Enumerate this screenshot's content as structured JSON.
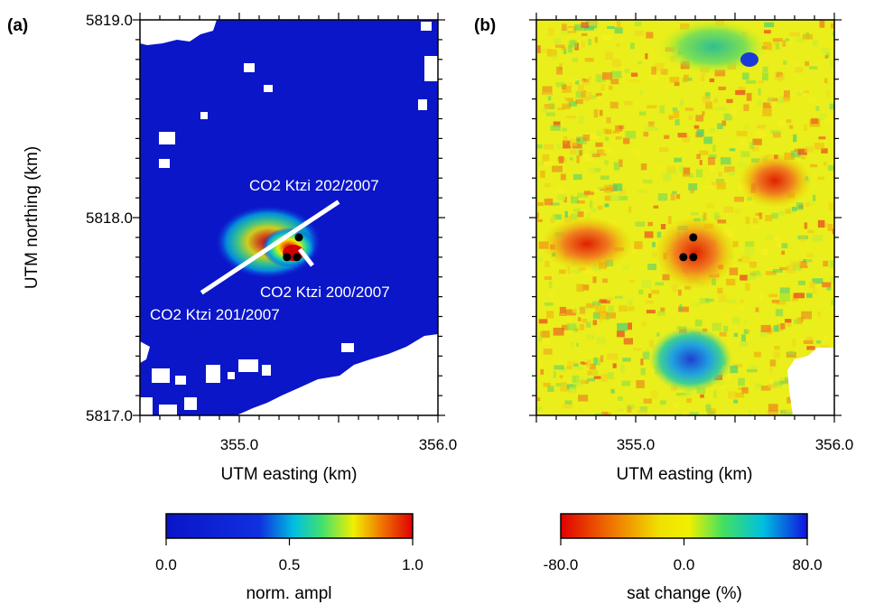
{
  "figure": {
    "panel_a": "(a)",
    "panel_b": "(b)"
  },
  "chart_data": [
    {
      "type": "heatmap",
      "panel": "(a)",
      "xlabel": "UTM easting (km)",
      "ylabel": "UTM northing (km)",
      "xlim": [
        354.5,
        356.0
      ],
      "ylim": [
        5817.0,
        5819.0
      ],
      "xticks": [
        "355.0",
        "356.0"
      ],
      "yticks": [
        "5817.0",
        "5818.0",
        "5819.0"
      ],
      "colorbar": {
        "label": "norm. ampl",
        "ticks": [
          "0.0",
          "0.5",
          "1.0"
        ],
        "range": [
          0.0,
          1.0
        ],
        "colormap": [
          "#0a14c8",
          "#1030e0",
          "#00c0e0",
          "#40e070",
          "#f0f000",
          "#f07000",
          "#e00000"
        ]
      },
      "background_value": 0.0,
      "wells": [
        {
          "name": "CO2 Ktzi 201/2007",
          "x": 355.24,
          "y": 5817.8
        },
        {
          "name": "CO2 Ktzi 200/2007",
          "x": 355.29,
          "y": 5817.8
        },
        {
          "name": "CO2 Ktzi 202/2007",
          "x": 355.3,
          "y": 5817.9
        }
      ],
      "profile_line": {
        "x": [
          354.81,
          355.5
        ],
        "y": [
          5817.62,
          5818.08
        ]
      },
      "anomaly_center": {
        "x": 355.27,
        "y": 5817.82,
        "peak_value": 1.0
      },
      "well_labels": [
        "CO2 Ktzi 202/2007",
        "CO2 Ktzi 200/2007",
        "CO2 Ktzi 201/2007"
      ]
    },
    {
      "type": "heatmap",
      "panel": "(b)",
      "xlabel": "UTM easting (km)",
      "xlim": [
        354.5,
        356.0
      ],
      "ylim": [
        5817.0,
        5819.0
      ],
      "xticks": [
        "355.0",
        "356.0"
      ],
      "colorbar": {
        "label": "sat change (%)",
        "ticks": [
          "-80.0",
          "0.0",
          "80.0"
        ],
        "range": [
          -80.0,
          80.0
        ],
        "colormap": [
          "#e00000",
          "#f07000",
          "#f0e000",
          "#f0f000",
          "#40e060",
          "#00c0e0",
          "#1010e0"
        ]
      },
      "wells": [
        {
          "x": 355.24,
          "y": 5817.8
        },
        {
          "x": 355.29,
          "y": 5817.8
        },
        {
          "x": 355.29,
          "y": 5817.9
        }
      ]
    }
  ]
}
